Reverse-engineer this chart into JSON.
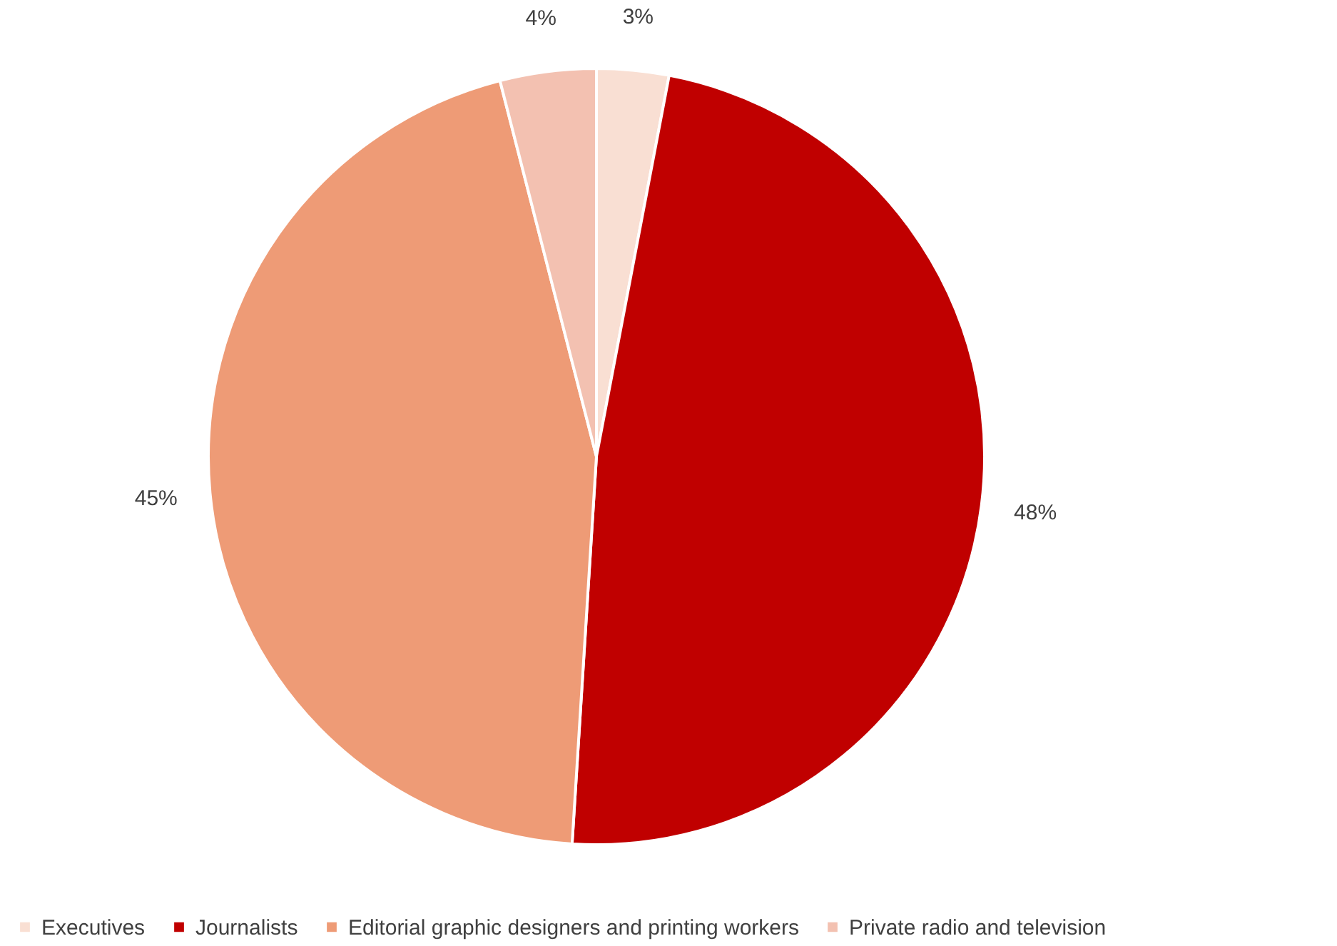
{
  "chart_data": {
    "type": "pie",
    "categories": [
      "Executives",
      "Journalists",
      "Editorial graphic designers and printing workers",
      "Private radio and television"
    ],
    "values": [
      3,
      48,
      45,
      4
    ],
    "colors": [
      "#f9dfd3",
      "#c00000",
      "#ee9b76",
      "#f3c1b1"
    ],
    "value_labels": [
      "3%",
      "48%",
      "45%",
      "4%"
    ],
    "legend": "bottom"
  }
}
